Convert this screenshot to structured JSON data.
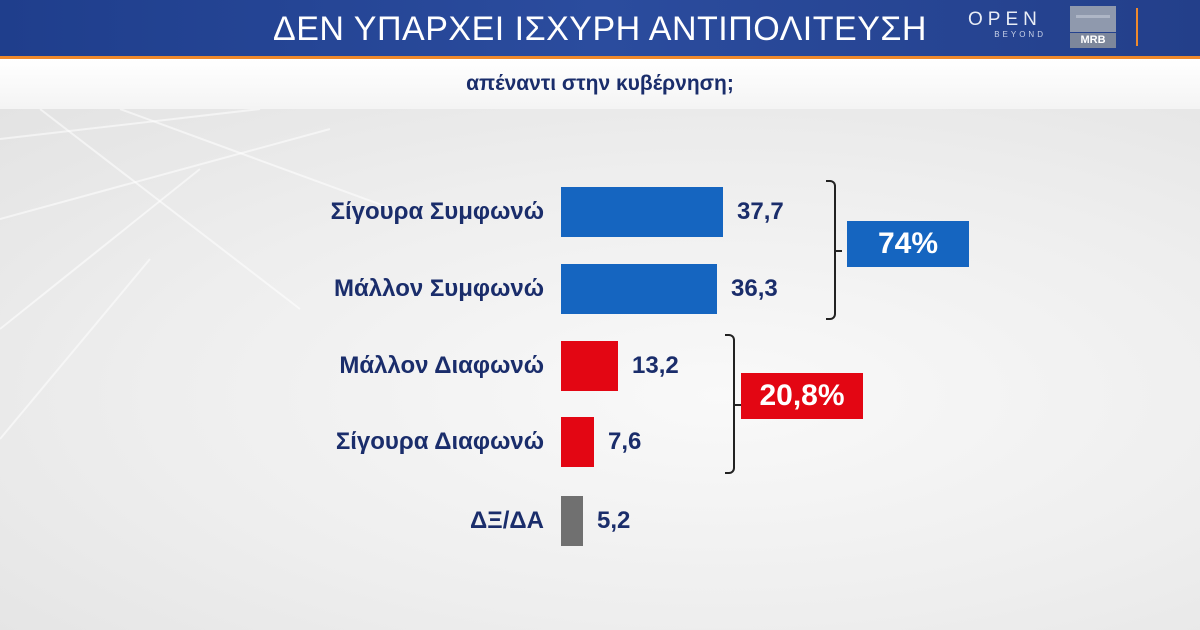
{
  "header": {
    "title": "ΔΕΝ ΥΠΑΡΧΕΙ ΙΣΧΥΡΗ ΑΝΤΙΠΟΛΙΤΕΥΣΗ",
    "subtitle": "απέναντι στην κυβέρνηση;",
    "logo_open": "OPEN",
    "logo_open_sub": "BEYOND",
    "logo_mrb": "MRB"
  },
  "colors": {
    "agree": "#1565c0",
    "disagree": "#e30613",
    "dontknow": "#707070",
    "header": "#24438f",
    "accent": "#f08a2c",
    "text": "#1a2d6b"
  },
  "chart_data": {
    "type": "bar",
    "orientation": "horizontal",
    "title": "ΔΕΝ ΥΠΑΡΧΕΙ ΙΣΧΥΡΗ ΑΝΤΙΠΟΛΙΤΕΥΣΗ",
    "subtitle": "απέναντι στην κυβέρνηση;",
    "categories": [
      "Σίγουρα Συμφωνώ",
      "Μάλλον Συμφωνώ",
      "Μάλλον Διαφωνώ",
      "Σίγουρα Διαφωνώ",
      "ΔΞ/ΔΑ"
    ],
    "values": [
      37.7,
      36.3,
      13.2,
      7.6,
      5.2
    ],
    "value_labels": [
      "37,7",
      "36,3",
      "13,2",
      "7,6",
      "5,2"
    ],
    "bar_colors": [
      "#1565c0",
      "#1565c0",
      "#e30613",
      "#e30613",
      "#707070"
    ],
    "groups": [
      {
        "label": "74%",
        "members": [
          0,
          1
        ],
        "color": "#1565c0"
      },
      {
        "label": "20,8%",
        "members": [
          2,
          3
        ],
        "color": "#e30613"
      }
    ],
    "grid": false,
    "legend": "none"
  }
}
